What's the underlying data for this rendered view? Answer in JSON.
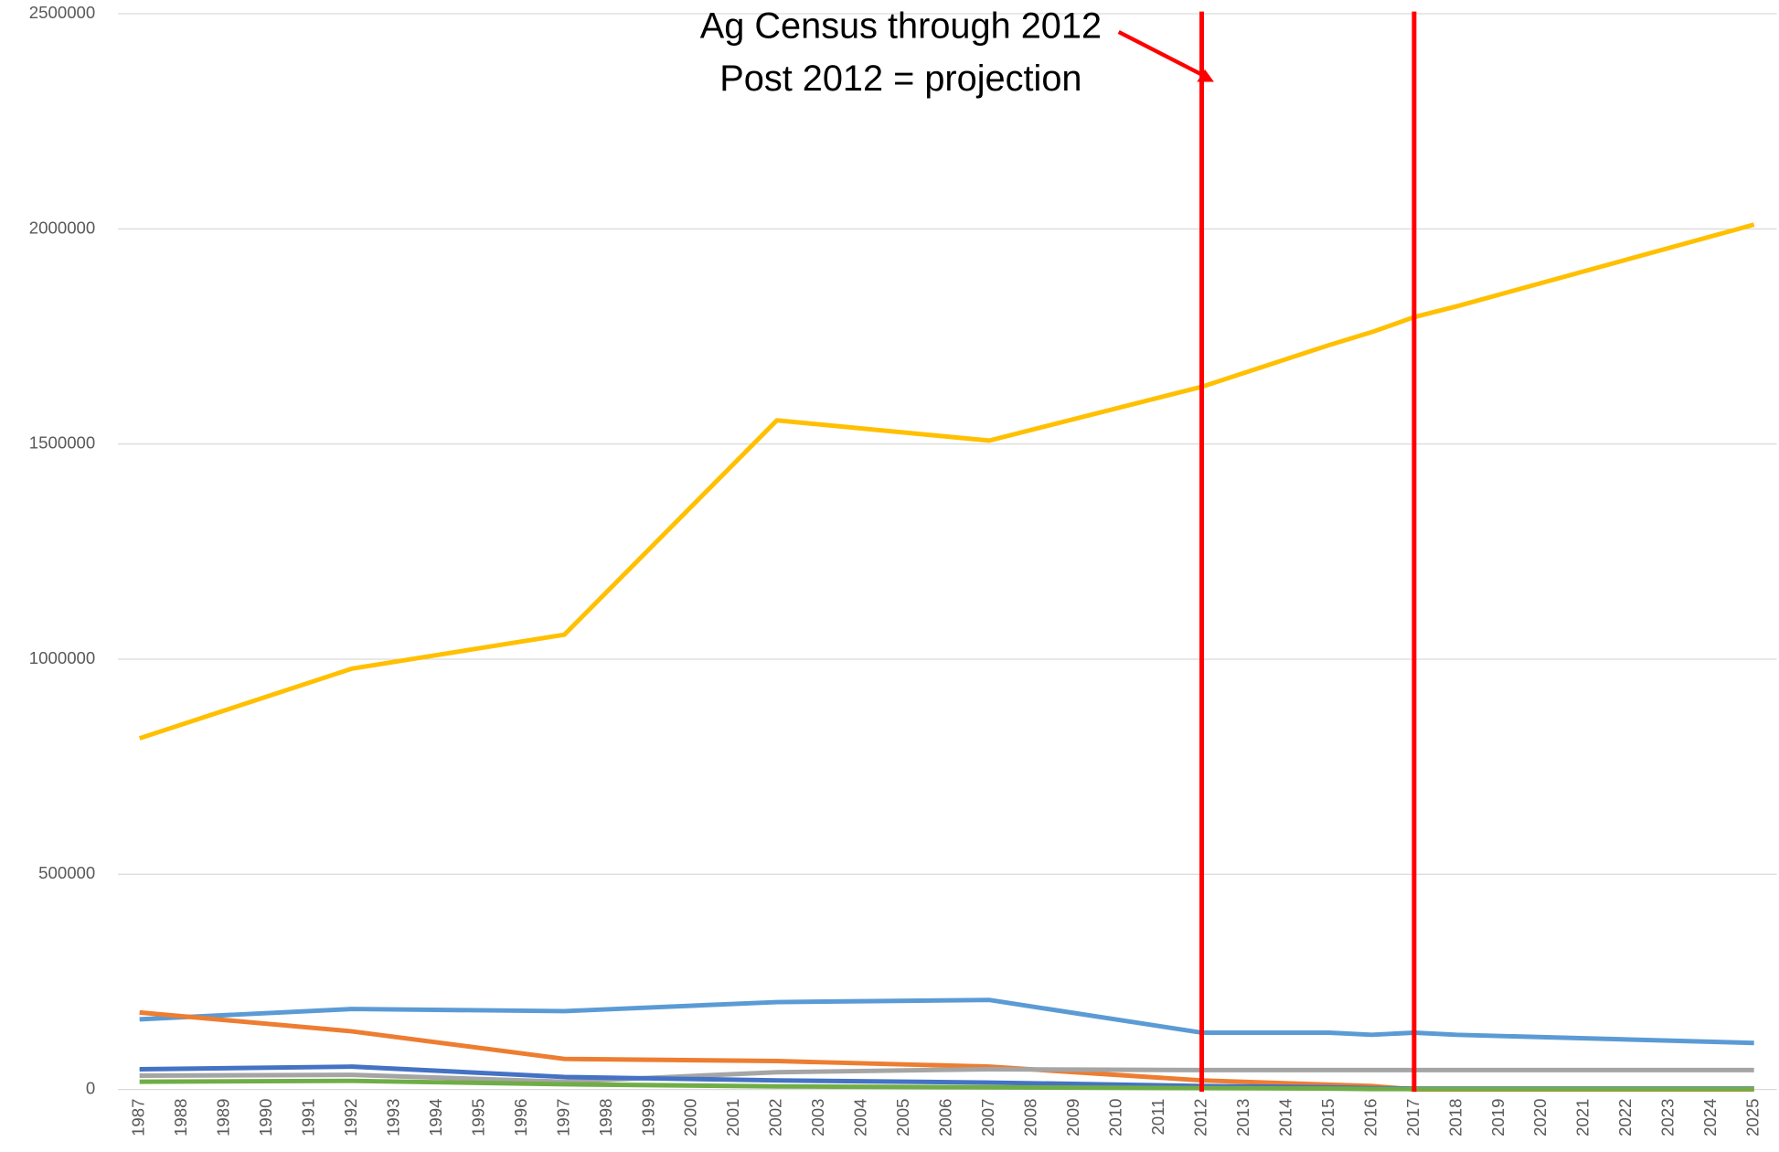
{
  "chart_data": {
    "type": "line",
    "x": [
      1987,
      1992,
      1997,
      2002,
      2007,
      2012,
      2015,
      2016,
      2017,
      2018,
      2025
    ],
    "xlim": [
      1987,
      2025
    ],
    "xticks": [
      1987,
      1988,
      1989,
      1990,
      1991,
      1992,
      1993,
      1994,
      1995,
      1996,
      1997,
      1998,
      1999,
      2000,
      2001,
      2002,
      2003,
      2004,
      2005,
      2006,
      2007,
      2008,
      2009,
      2010,
      2011,
      2012,
      2013,
      2014,
      2015,
      2016,
      2017,
      2018,
      2019,
      2020,
      2021,
      2022,
      2023,
      2024,
      2025
    ],
    "ylim": [
      0,
      2500000
    ],
    "yticks": [
      0,
      500000,
      1000000,
      1500000,
      2000000,
      2500000
    ],
    "grid": true,
    "series": [
      {
        "color": "#ffc000",
        "values": [
          816000,
          978000,
          1057000,
          1555000,
          1508000,
          1633000,
          1730000,
          1760000,
          1795000,
          1820000,
          2010000
        ]
      },
      {
        "color": "#5b9bd5",
        "values": [
          163000,
          187000,
          182000,
          203000,
          208000,
          132000,
          132000,
          127000,
          132000,
          127000,
          108000
        ]
      },
      {
        "color": "#ed7d31",
        "values": [
          179000,
          135000,
          71000,
          66000,
          53000,
          21000,
          11000,
          8000,
          0,
          0,
          0
        ]
      },
      {
        "color": "#a5a5a5",
        "values": [
          32000,
          34000,
          18000,
          40000,
          47000,
          45000,
          45000,
          45000,
          45000,
          45000,
          45000
        ]
      },
      {
        "color": "#4472c4",
        "values": [
          47000,
          53000,
          29000,
          21000,
          16000,
          8000,
          5000,
          3000,
          2000,
          2000,
          2000
        ]
      },
      {
        "color": "#70ad47",
        "values": [
          18000,
          20000,
          12000,
          7000,
          5000,
          3000,
          2000,
          1000,
          1000,
          1000,
          1000
        ]
      }
    ],
    "vlines": {
      "color": "#ff0000",
      "values": [
        2012,
        2017
      ]
    },
    "annotations": [
      "Ag Census through 2012",
      "Post 2012 = projection"
    ]
  }
}
